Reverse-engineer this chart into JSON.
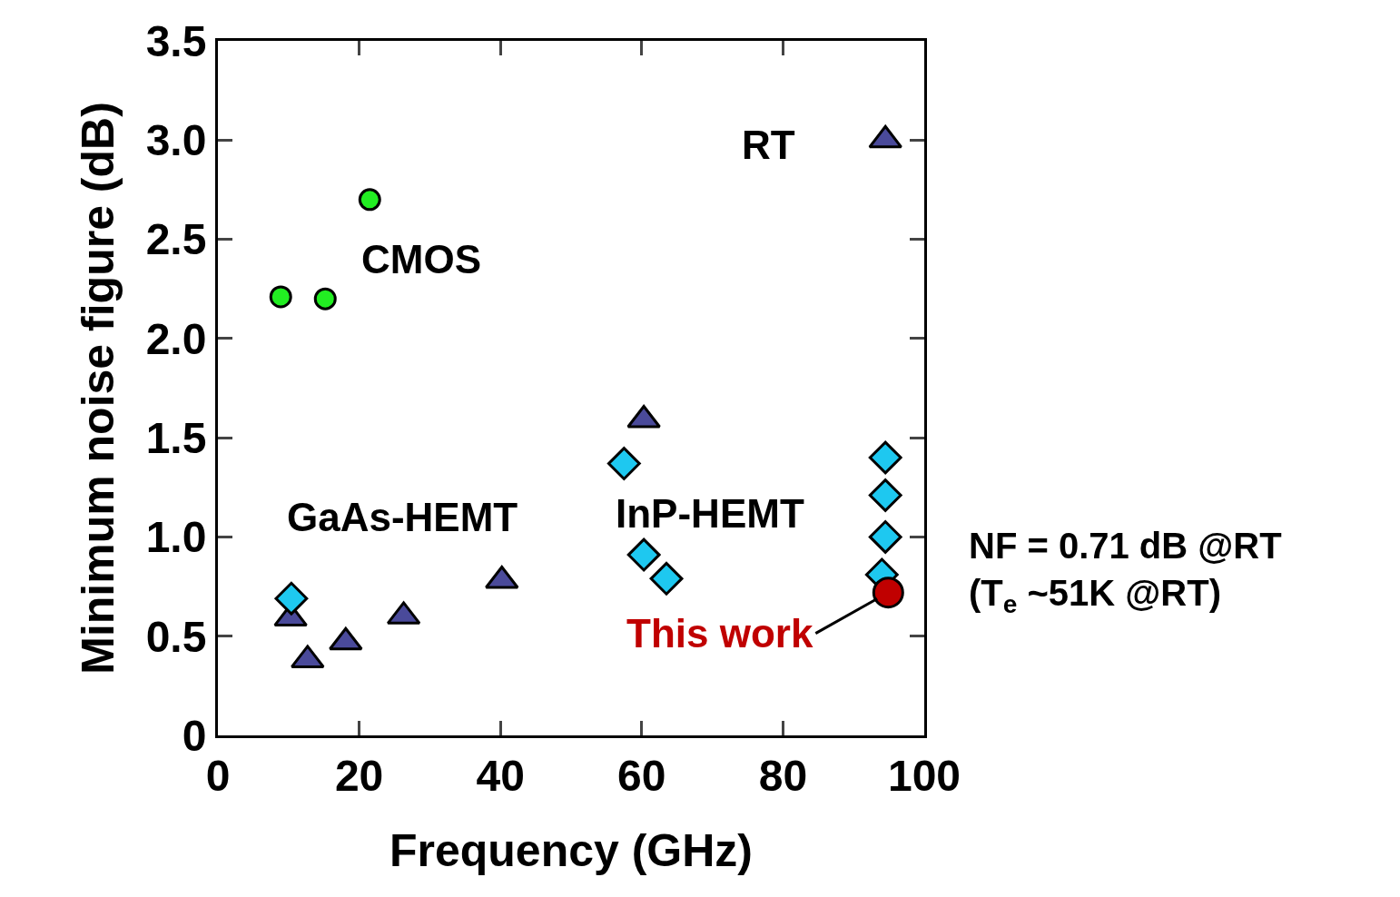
{
  "chart_data": {
    "type": "scatter",
    "xlabel": "Frequency (GHz)",
    "ylabel": "Minimum noise figure (dB)",
    "xlim": [
      0,
      100
    ],
    "xticks": [
      0,
      20,
      40,
      60,
      80,
      100
    ],
    "ylim": [
      0,
      3.5
    ],
    "yticks": [
      0,
      {
        "value": 0.5,
        "label": "0.5"
      },
      {
        "value": 1,
        "label": "1.0"
      },
      {
        "value": 1.5,
        "label": "1.5"
      },
      {
        "value": 2,
        "label": "2.0"
      },
      {
        "value": 2.5,
        "label": "2.5"
      },
      {
        "value": 3,
        "label": "3.0"
      },
      {
        "value": 3.5,
        "label": "3.5"
      }
    ],
    "series": [
      {
        "name": "CMOS",
        "color": "#22ee22",
        "marker": "circle",
        "x": [
          8.9,
          15.2,
          21.5
        ],
        "values": [
          2.21,
          2.2,
          2.7
        ]
      },
      {
        "name": "GaAs-HEMT",
        "color": "#4a4a9a",
        "marker": "triangle",
        "x": [
          10.3,
          12.7,
          18.1,
          26.3,
          40.2,
          60.3,
          94.5
        ],
        "values": [
          0.59,
          0.38,
          0.47,
          0.6,
          0.78,
          1.59,
          3.0
        ]
      },
      {
        "name": "InP-HEMT",
        "color": "#1ec8f0",
        "marker": "diamond",
        "x": [
          10.4,
          57.5,
          60.3,
          63.5,
          94.5,
          94.5,
          94.5,
          94.0
        ],
        "values": [
          0.69,
          1.37,
          0.91,
          0.79,
          1.4,
          1.21,
          1.0,
          0.81
        ]
      },
      {
        "name": "This work",
        "color": "#c00000",
        "marker": "circle",
        "x": [
          94.9
        ],
        "values": [
          0.72
        ]
      }
    ],
    "annotations": [
      "RT",
      "NF = 0.71 dB @RT\n(T$_{e}$ ~51K @RT)"
    ]
  }
}
